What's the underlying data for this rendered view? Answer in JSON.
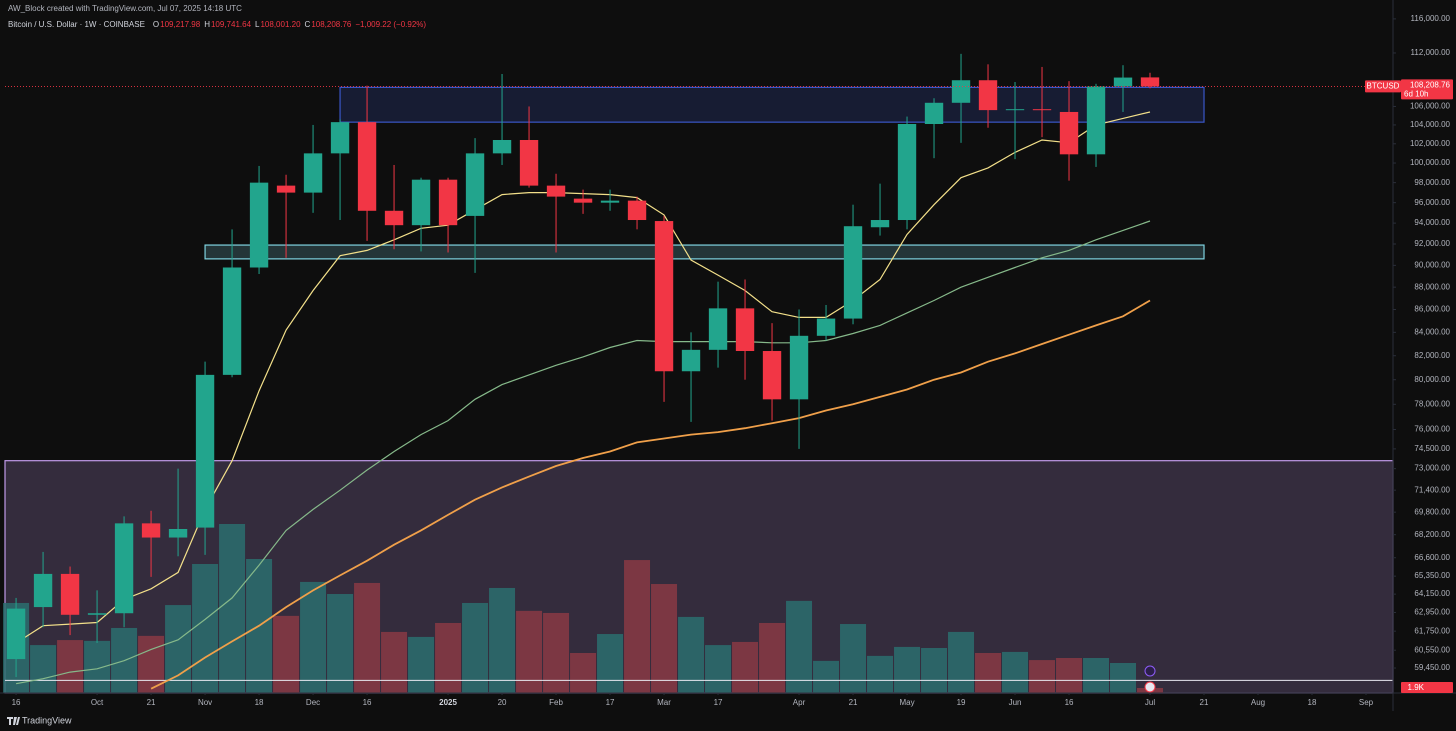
{
  "chart_data": {
    "type": "candlestick",
    "header": {
      "author": "AW_Block created with TradingView.com, Jul 07, 2025 14:18 UTC",
      "symbol": "Bitcoin / U.S. Dollar · 1W · COINBASE",
      "ohlc": [
        {
          "key": "O",
          "label": "109,217.98"
        },
        {
          "key": "H",
          "label": "109,741.64"
        },
        {
          "key": "L",
          "label": "108,001.20"
        },
        {
          "key": "C",
          "label": "108,208.76"
        }
      ],
      "change": "−1,009.22 (−0.92%)"
    },
    "brand": "TradingView",
    "log_scale": true,
    "up_color": "#22a58d",
    "down_color": "#f23645",
    "open": [
      60000,
      63300,
      65500,
      62800,
      62900,
      69000,
      68000,
      68700,
      80400,
      89800,
      97700,
      97000,
      101000,
      104300,
      95200,
      93800,
      98300,
      94700,
      101000,
      102400,
      97700,
      96400,
      96000,
      96200,
      94200,
      80700,
      82500,
      86100,
      82400,
      78400,
      83700,
      85200,
      93600,
      94300,
      104100,
      106400,
      108900,
      105600,
      105700,
      105400,
      100900,
      108200,
      109217.98
    ],
    "high": [
      63900,
      67000,
      66000,
      64400,
      69500,
      69900,
      73000,
      81500,
      93400,
      99700,
      98800,
      104000,
      104600,
      108300,
      99800,
      98500,
      98500,
      102600,
      109600,
      106000,
      98900,
      97300,
      97300,
      96600,
      94700,
      84000,
      88500,
      88700,
      84800,
      86000,
      86400,
      95800,
      97900,
      104900,
      106900,
      111900,
      110700,
      108700,
      110400,
      108800,
      108500,
      110600,
      109741.64
    ],
    "low": [
      58900,
      62000,
      61500,
      61000,
      62000,
      65300,
      66700,
      66800,
      80200,
      89200,
      90700,
      95000,
      94300,
      92300,
      91500,
      91300,
      91200,
      89300,
      99800,
      97500,
      91200,
      94900,
      95200,
      93400,
      78200,
      76600,
      81000,
      80000,
      76700,
      74500,
      83300,
      84700,
      92800,
      93400,
      100500,
      102100,
      103700,
      100400,
      102700,
      98200,
      99600,
      105400,
      108001.2
    ],
    "close": [
      63200,
      65500,
      62800,
      62900,
      69000,
      68000,
      68600,
      80400,
      89800,
      98000,
      97000,
      101000,
      104300,
      95200,
      93800,
      98300,
      93800,
      101000,
      102400,
      97700,
      96600,
      96000,
      96200,
      94300,
      80700,
      82500,
      86100,
      82400,
      78400,
      83700,
      85200,
      93700,
      94300,
      104100,
      106400,
      108900,
      105600,
      105700,
      105600,
      100900,
      108200,
      109200,
      108208.76
    ],
    "volume": {
      "up_color": "#2b6f6e",
      "down_color": "#8a3a44",
      "values": [
        34200,
        18200,
        20100,
        19800,
        24700,
        21700,
        33400,
        49000,
        64200,
        50900,
        29300,
        42200,
        37600,
        41800,
        23200,
        21300,
        26600,
        34200,
        39900,
        31200,
        30400,
        15200,
        22400,
        50500,
        41400,
        28900,
        18200,
        19400,
        26600,
        35000,
        12200,
        26200,
        14100,
        17500,
        17100,
        23200,
        15200,
        15600,
        12500,
        13300,
        13300,
        11400,
        1900
      ],
      "last_label": "1.9K"
    },
    "overlays": [
      {
        "color": "#f3e08a",
        "values": [
          61000,
          62100,
          62200,
          62300,
          63800,
          64500,
          65600,
          70000,
          73600,
          79100,
          84200,
          87700,
          90900,
          91400,
          92400,
          93500,
          93800,
          95300,
          96800,
          97000,
          97000,
          96900,
          96800,
          96500,
          94800,
          90500,
          89100,
          87700,
          85800,
          85300,
          85300,
          86800,
          88700,
          92900,
          95800,
          98500,
          99500,
          101100,
          102400,
          102100,
          104000,
          104700,
          105400
        ]
      },
      {
        "color": "#86b98a",
        "values": [
          58500,
          58800,
          59200,
          59400,
          59900,
          60600,
          61200,
          62500,
          63900,
          66100,
          68500,
          70000,
          71400,
          72900,
          74300,
          75600,
          76700,
          78400,
          79600,
          80400,
          81200,
          81900,
          82700,
          83300,
          83200,
          83200,
          83200,
          83200,
          83100,
          83100,
          83300,
          83900,
          84600,
          85700,
          86800,
          88000,
          88900,
          89800,
          90700,
          91400,
          92400,
          93300,
          94200
        ]
      },
      {
        "color": "#f0a04a",
        "values": [
          null,
          null,
          null,
          null,
          null,
          58200,
          59000,
          60100,
          61100,
          62100,
          63300,
          64400,
          65400,
          66400,
          67500,
          68500,
          69600,
          70700,
          71600,
          72400,
          73200,
          73800,
          74300,
          75000,
          75300,
          75600,
          75800,
          76100,
          76500,
          76900,
          77500,
          78000,
          78600,
          79200,
          80000,
          80600,
          81500,
          82200,
          83000,
          83800,
          84600,
          85400,
          86800
        ]
      }
    ],
    "zones": [
      {
        "top": 108100,
        "bottom": 104300,
        "x": [
          12,
          44
        ],
        "color": "#3a56c8"
      },
      {
        "top": 91900,
        "bottom": 90600,
        "x": [
          7,
          44
        ],
        "color": "#7fd3e0"
      },
      {
        "top": 73600,
        "color": "#c09ae8"
      }
    ],
    "levels": [
      {
        "price": 58700,
        "color": "#e8e8f0"
      }
    ],
    "price_label": {
      "symbol": "BTCUSD",
      "price": {
        "value": 108208.76,
        "label": "108,208.76"
      },
      "countdown": "6d 10h"
    },
    "xlim": [
      -0.41,
      51
    ],
    "xticks": [
      {
        "value": 0,
        "label": "16"
      },
      {
        "value": 3,
        "label": "Oct"
      },
      {
        "value": 5,
        "label": "21"
      },
      {
        "value": 7,
        "label": "Nov"
      },
      {
        "value": 9,
        "label": "18"
      },
      {
        "value": 11,
        "label": "Dec"
      },
      {
        "value": 13,
        "label": "16"
      },
      {
        "value": 16,
        "label": "2025"
      },
      {
        "value": 18,
        "label": "20"
      },
      {
        "value": 20,
        "label": "Feb"
      },
      {
        "value": 22,
        "label": "17"
      },
      {
        "value": 24,
        "label": "Mar"
      },
      {
        "value": 26,
        "label": "17"
      },
      {
        "value": 29,
        "label": "Apr"
      },
      {
        "value": 31,
        "label": "21"
      },
      {
        "value": 33,
        "label": "May"
      },
      {
        "value": 35,
        "label": "19"
      },
      {
        "value": 37,
        "label": "Jun"
      },
      {
        "value": 39,
        "label": "16"
      },
      {
        "value": 42,
        "label": "Jul"
      },
      {
        "value": 44,
        "label": "21"
      },
      {
        "value": 46,
        "label": "Aug"
      },
      {
        "value": 48,
        "label": "18"
      },
      {
        "value": 50,
        "label": "Sep"
      }
    ],
    "ylim": [
      57940,
      118280
    ],
    "yticks": [
      {
        "value": 116000,
        "label": "116,000.00"
      },
      {
        "value": 112000,
        "label": "112,000.00"
      },
      {
        "value": 106000,
        "label": "106,000.00"
      },
      {
        "value": 104000,
        "label": "104,000.00"
      },
      {
        "value": 102000,
        "label": "102,000.00"
      },
      {
        "value": 100000,
        "label": "100,000.00"
      },
      {
        "value": 98000,
        "label": "98,000.00"
      },
      {
        "value": 96000,
        "label": "96,000.00"
      },
      {
        "value": 94000,
        "label": "94,000.00"
      },
      {
        "value": 92000,
        "label": "92,000.00"
      },
      {
        "value": 90000,
        "label": "90,000.00"
      },
      {
        "value": 88000,
        "label": "88,000.00"
      },
      {
        "value": 86000,
        "label": "86,000.00"
      },
      {
        "value": 84000,
        "label": "84,000.00"
      },
      {
        "value": 82000,
        "label": "82,000.00"
      },
      {
        "value": 80000,
        "label": "80,000.00"
      },
      {
        "value": 78000,
        "label": "78,000.00"
      },
      {
        "value": 76000,
        "label": "76,000.00"
      },
      {
        "value": 74500,
        "label": "74,500.00"
      },
      {
        "value": 73000,
        "label": "73,000.00"
      },
      {
        "value": 71400,
        "label": "71,400.00"
      },
      {
        "value": 69800,
        "label": "69,800.00"
      },
      {
        "value": 68200,
        "label": "68,200.00"
      },
      {
        "value": 66600,
        "label": "66,600.00"
      },
      {
        "value": 65350,
        "label": "65,350.00"
      },
      {
        "value": 64150,
        "label": "64,150.00"
      },
      {
        "value": 62950,
        "label": "62,950.00"
      },
      {
        "value": 61750,
        "label": "61,750.00"
      },
      {
        "value": 60550,
        "label": "60,550.00"
      },
      {
        "value": 59450,
        "label": "59,450.00"
      }
    ]
  }
}
